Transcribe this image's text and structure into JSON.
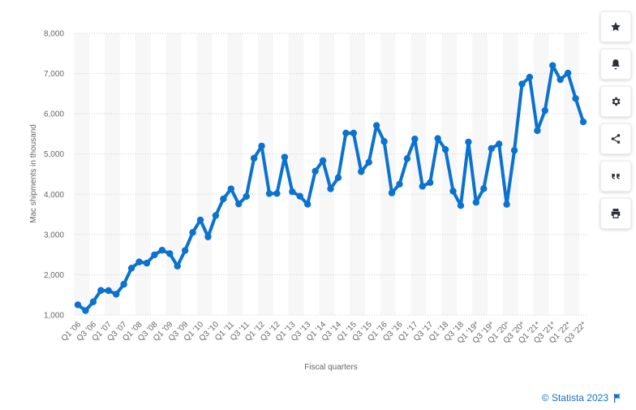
{
  "chart_data": {
    "type": "line",
    "title": "",
    "xlabel": "Fiscal quarters",
    "ylabel": "Mac shipments in thousand",
    "ylim": [
      1000,
      8000
    ],
    "yticks": [
      "1,000",
      "2,000",
      "3,000",
      "4,000",
      "5,000",
      "6,000",
      "7,000",
      "8,000"
    ],
    "x_tick_labels": [
      "Q1 '06",
      "Q3 '06",
      "Q1 '07",
      "Q3 '07",
      "Q1 '08",
      "Q3 '08",
      "Q1 '09",
      "Q3 '09",
      "Q1 '10",
      "Q3 '10",
      "Q1 '11",
      "Q3 '11",
      "Q1 '12",
      "Q3 '12",
      "Q1 '13",
      "Q3 '13",
      "Q1 '14",
      "Q3 '14",
      "Q1 '15",
      "Q3 '15",
      "Q1 '16",
      "Q3 '16",
      "Q1 '17",
      "Q3 '17",
      "Q1 '18",
      "Q3 '18",
      "Q1 '19*",
      "Q3 '19*",
      "Q1 '20*",
      "Q3 '20*",
      "Q1 '21*",
      "Q3 '21*",
      "Q1 '22*",
      "Q3 '22*"
    ],
    "grid": true,
    "line_color": "#0a72cf",
    "series": [
      {
        "values": [
          1254,
          1110,
          1327,
          1610,
          1606,
          1517,
          1764,
          2164,
          2319,
          2289,
          2495,
          2611,
          2524,
          2216,
          2603,
          3053,
          3362,
          2943,
          3472,
          3885,
          4134,
          3760,
          3947,
          4894,
          5198,
          4017,
          4020,
          4923,
          4063,
          3951,
          3754,
          4574,
          4837,
          4136,
          4413,
          5520,
          5519,
          4563,
          4796,
          5709,
          5312,
          4034,
          4252,
          4886,
          5374,
          4199,
          4292,
          5386,
          5112,
          4078,
          3720,
          5299,
          3800,
          4140,
          5138,
          5250,
          3750,
          5090,
          6740,
          6910,
          5580,
          6080,
          7200,
          6850,
          7010,
          6380,
          5800
        ]
      }
    ]
  },
  "toolbar": {
    "buttons": [
      "star-icon",
      "bell-icon",
      "gear-icon",
      "share-icon",
      "quote-icon",
      "print-icon"
    ]
  },
  "credit": {
    "text": "© Statista 2023"
  }
}
